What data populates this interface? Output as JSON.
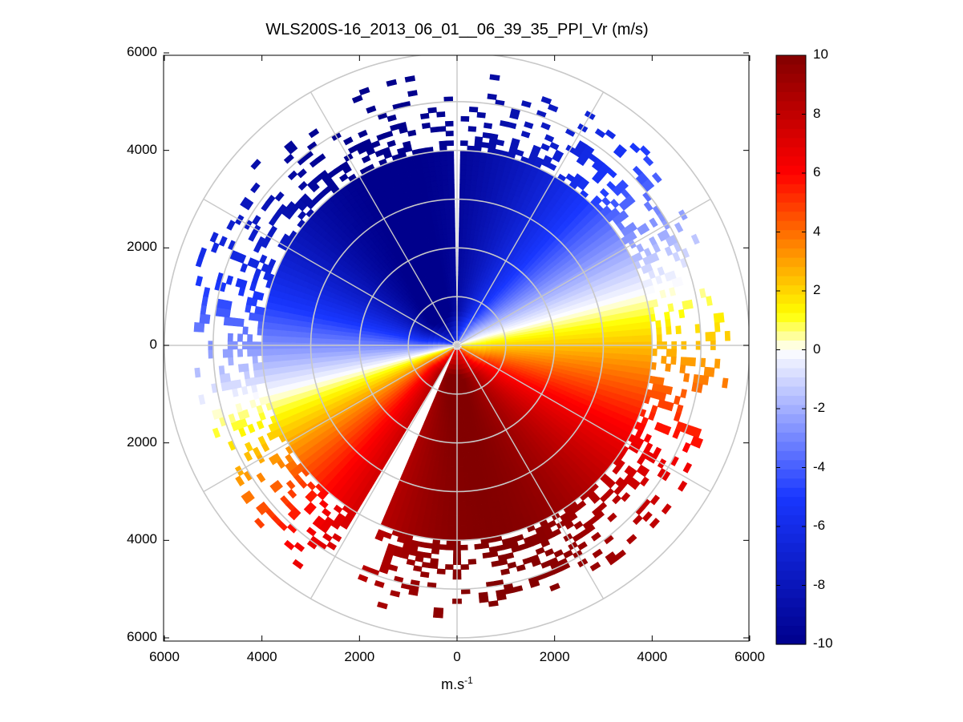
{
  "chart_data": {
    "type": "polar-ppi-heatmap",
    "title": "WLS200S-16_2013_06_01__06_39_35_PPI_Vr (m/s)",
    "xlabel_base": "m.s",
    "xlabel_exp": "-1",
    "ylabel": "",
    "x_range": [
      -6000,
      6000
    ],
    "y_range": [
      -6000,
      6000
    ],
    "x_tick_labels": [
      "6000",
      "4000",
      "2000",
      "0",
      "2000",
      "4000",
      "6000"
    ],
    "x_tick_values": [
      -6000,
      -4000,
      -2000,
      0,
      2000,
      4000,
      6000
    ],
    "y_tick_labels": [
      "6000",
      "4000",
      "2000",
      "0",
      "2000",
      "4000",
      "6000"
    ],
    "y_tick_values": [
      6000,
      4000,
      2000,
      0,
      -2000,
      -4000,
      -6000
    ],
    "range_rings": [
      1000,
      2000,
      3000,
      4000,
      5000,
      6000
    ],
    "radial_line_step_deg": 30,
    "colorbar": {
      "min": -10,
      "max": 10,
      "tick_labels": [
        "10",
        "8",
        "6",
        "4",
        "2",
        "0",
        "-2",
        "-4",
        "-6",
        "-8",
        "-10"
      ],
      "tick_values": [
        10,
        8,
        6,
        4,
        2,
        0,
        -2,
        -4,
        -6,
        -8,
        -10
      ],
      "colormap": "blue-white-red"
    },
    "field": {
      "description": "radial velocity, negative (blue) toward northern half, positive (red) toward southern half",
      "boundary_rotation_deg": -15,
      "dense_coverage_radius": 4000,
      "max_range": 5600,
      "missing_beam_azimuths_deg": [
        0,
        207
      ]
    }
  }
}
